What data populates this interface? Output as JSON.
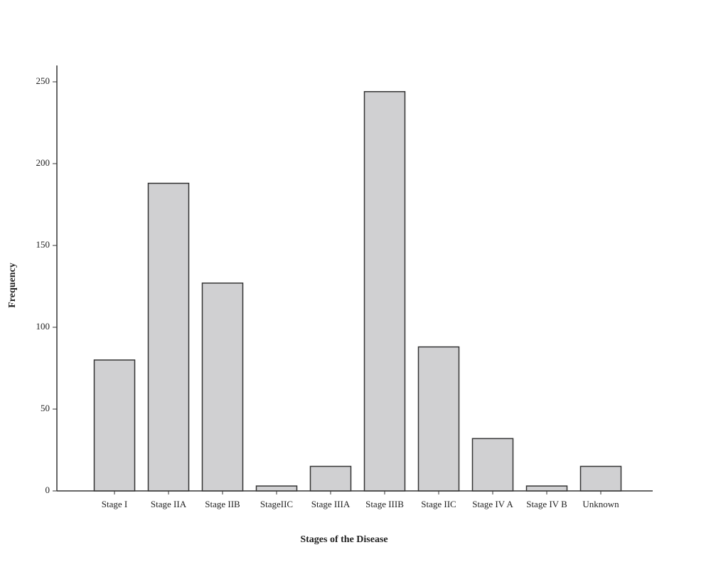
{
  "chart_data": {
    "type": "bar",
    "x_label": "Stages of the Disease",
    "y_label": "Frequency",
    "categories": [
      "Stage I",
      "Stage IIA",
      "Stage IIB",
      "StageIIC",
      "Stage IIIA",
      "Stage IIIB",
      "Stage IIC",
      "Stage IV A",
      "Stage IV B",
      "Unknown"
    ],
    "values": [
      80,
      188,
      127,
      3,
      15,
      244,
      88,
      32,
      3,
      15
    ],
    "color": "#d0d0d2",
    "ylim": [
      0,
      260
    ],
    "yticks": [
      0,
      50,
      100,
      150,
      200,
      250
    ],
    "grid": false
  }
}
